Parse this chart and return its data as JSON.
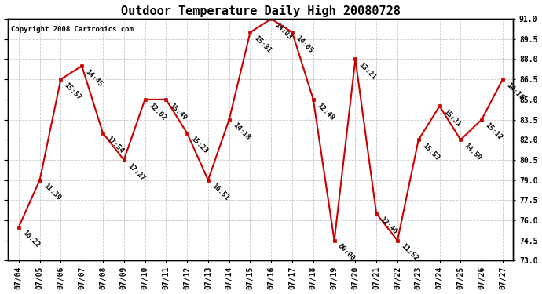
{
  "title": "Outdoor Temperature Daily High 20080728",
  "copyright": "Copyright 2008 Cartronics.com",
  "dates": [
    "07/04",
    "07/05",
    "07/06",
    "07/07",
    "07/08",
    "07/09",
    "07/10",
    "07/11",
    "07/12",
    "07/13",
    "07/14",
    "07/15",
    "07/16",
    "07/17",
    "07/18",
    "07/19",
    "07/20",
    "07/21",
    "07/22",
    "07/23",
    "07/24",
    "07/25",
    "07/26",
    "07/27"
  ],
  "values": [
    75.5,
    79.0,
    86.5,
    87.5,
    82.5,
    80.5,
    85.0,
    85.0,
    82.5,
    79.0,
    83.5,
    90.0,
    91.0,
    90.0,
    85.0,
    74.5,
    88.0,
    76.5,
    74.5,
    82.0,
    84.5,
    82.0,
    83.5,
    86.5
  ],
  "labels": [
    "16:22",
    "11:39",
    "15:57",
    "14:45",
    "17:54",
    "17:27",
    "12:02",
    "15:49",
    "15:23",
    "16:51",
    "14:18",
    "15:31",
    "14:03",
    "14:05",
    "12:48",
    "00:00",
    "13:21",
    "12:46",
    "11:52",
    "15:53",
    "15:31",
    "14:50",
    "15:12",
    "14:16"
  ],
  "line_color": "#cc0000",
  "marker_color": "#cc0000",
  "background_color": "#ffffff",
  "grid_color": "#bbbbbb",
  "title_fontsize": 11,
  "label_fontsize": 6.5,
  "copyright_fontsize": 6.5,
  "tick_fontsize": 7,
  "ylim": [
    73.0,
    91.0
  ],
  "yticks": [
    73.0,
    74.5,
    76.0,
    77.5,
    79.0,
    80.5,
    82.0,
    83.5,
    85.0,
    86.5,
    88.0,
    89.5,
    91.0
  ]
}
